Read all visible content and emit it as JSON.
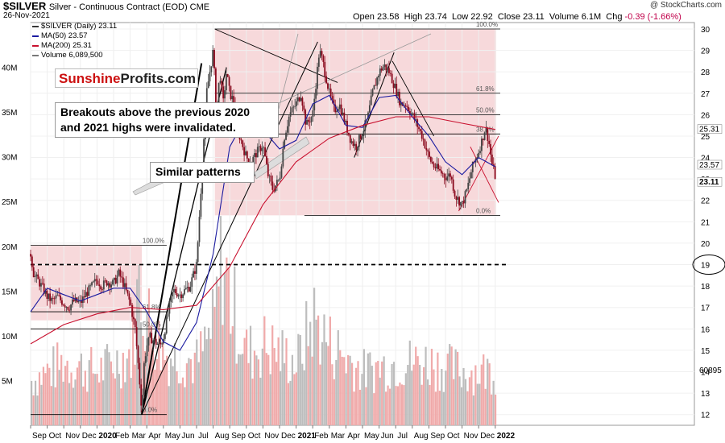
{
  "header": {
    "symbol": "$SILVER",
    "subtitle": "Silver - Continuous Contract (EOD)  CME",
    "date": "26-Nov-2021",
    "credit": "@ StockCharts.com",
    "open_label": "Open",
    "open": "23.58",
    "high_label": "High",
    "high": "23.74",
    "low_label": "Low",
    "low": "22.92",
    "close_label": "Close",
    "close": "23.11",
    "volume_label": "Volume",
    "volume": "6.1M",
    "chg_label": "Chg",
    "chg": "-0.39 (-1.66%)"
  },
  "legend": [
    {
      "text": "$SILVER (Daily) 23.11",
      "color": "#333333"
    },
    {
      "text": "MA(50) 23.57",
      "color": "#1a1aa0"
    },
    {
      "text": "MA(200) 25.31",
      "color": "#c8102e"
    },
    {
      "text": "Volume 6,089,500",
      "color": "#777777"
    }
  ],
  "logo": {
    "part1": "Sunshine",
    "part2": "Profits.com"
  },
  "annotations": {
    "breakout_line1": "Breakouts above the previous 2020",
    "breakout_line2": "and 2021 highs were invalidated.",
    "similar": "Similar patterns"
  },
  "colors": {
    "candle_up": "#444444",
    "candle_down": "#8b0a1e",
    "ma50": "#1a1aa0",
    "ma200": "#c8102e",
    "highlight_box": "#f4cccf",
    "volume_up": "#bdbdbd",
    "volume_down": "#f0aaaa"
  },
  "chart_data": {
    "type": "line",
    "title": "$SILVER Silver - Continuous Contract (EOD) CME",
    "x_tick_labels": [
      "Sep",
      "Oct",
      "Nov",
      "Dec",
      "2020",
      "Feb",
      "Mar",
      "Apr",
      "May",
      "Jun",
      "Jul",
      "Aug",
      "Sep",
      "Oct",
      "Nov",
      "Dec",
      "2021",
      "Feb",
      "Mar",
      "Apr",
      "May",
      "Jun",
      "Jul",
      "Aug",
      "Sep",
      "Oct",
      "Nov",
      "Dec",
      "2022"
    ],
    "price_axis_ticks": [
      12,
      13,
      14,
      15,
      16,
      17,
      18,
      19,
      20,
      21,
      22,
      23,
      24,
      25,
      26,
      27,
      28,
      29,
      30
    ],
    "price_ylim": [
      11.5,
      30.3
    ],
    "volume_axis_ticks": [
      "5M",
      "10M",
      "15M",
      "20M",
      "25M",
      "30M",
      "35M",
      "40M"
    ],
    "volume_ylim": [
      0,
      45
    ],
    "x_range_months": [
      0,
      40
    ],
    "right_axis_labels": [
      "25.31",
      "23.57",
      "23.11",
      "60895"
    ],
    "series": [
      {
        "name": "$SILVER (Daily) 23.11",
        "x": [
          0,
          0.2,
          0.5,
          0.8,
          1,
          1.3,
          1.6,
          2,
          2.3,
          2.6,
          3,
          3.3,
          3.6,
          4,
          4.3,
          4.6,
          5,
          5.3,
          5.6,
          6,
          6.3,
          6.5,
          6.7,
          6.85,
          7,
          7.2,
          7.5,
          7.8,
          8,
          8.3,
          8.6,
          9,
          9.3,
          9.6,
          10,
          10.3,
          10.6,
          11,
          11.2,
          11.4,
          11.6,
          11.8,
          12,
          12.3,
          12.6,
          13,
          13.3,
          13.6,
          14,
          14.3,
          14.6,
          15,
          15.3,
          15.6,
          16,
          16.3,
          16.6,
          17,
          17.2,
          17.4,
          17.6,
          18,
          18.3,
          18.6,
          19,
          19.3,
          19.6,
          20,
          20.3,
          20.6,
          21,
          21.3,
          21.6,
          22,
          22.3,
          22.6,
          23,
          23.3,
          23.6,
          24,
          24.3,
          24.6,
          25,
          25.3,
          25.6,
          26,
          26.3,
          26.6,
          27,
          27.2,
          27.4,
          27.6,
          27.8,
          28
        ],
        "close": [
          19.5,
          18.5,
          18.2,
          17.8,
          17.5,
          17.3,
          17.5,
          17.2,
          17.0,
          17.3,
          17.2,
          17.6,
          17.9,
          18.3,
          18.0,
          18.2,
          18.1,
          18.6,
          18.1,
          17.2,
          16.0,
          14.2,
          12.2,
          14.5,
          15.2,
          15.6,
          15.4,
          15.2,
          15.6,
          16.8,
          17.8,
          17.6,
          17.8,
          18.0,
          19.0,
          23.0,
          27.0,
          29.0,
          26.0,
          28.0,
          26.5,
          28.0,
          27.0,
          26.5,
          25.0,
          24.0,
          23.8,
          24.2,
          24.6,
          23.2,
          22.5,
          23.0,
          25.0,
          26.0,
          26.5,
          27.0,
          25.5,
          26.0,
          27.5,
          29.0,
          28.5,
          27.0,
          26.2,
          26.5,
          25.5,
          24.8,
          24.5,
          25.2,
          25.8,
          27.0,
          28.0,
          28.3,
          28.0,
          27.2,
          26.5,
          26.5,
          26.0,
          25.5,
          25.0,
          24.0,
          23.6,
          23.4,
          23.1,
          23.2,
          22.2,
          21.8,
          22.5,
          23.5,
          24.3,
          24.8,
          25.4,
          24.8,
          23.7,
          23.11
        ],
        "color": "#333333"
      },
      {
        "name": "MA(50) 23.57",
        "x": [
          0,
          1,
          2,
          3,
          4,
          5,
          6,
          7,
          8,
          9,
          10,
          11,
          12,
          13,
          14,
          15,
          16,
          17,
          18,
          19,
          20,
          21,
          22,
          23,
          24,
          25,
          26,
          27,
          28
        ],
        "close": [
          16.8,
          17.9,
          17.6,
          17.3,
          17.6,
          17.9,
          17.9,
          16.8,
          15.4,
          15.0,
          16.3,
          19.5,
          24.5,
          25.9,
          25.3,
          24.4,
          24.8,
          26.5,
          26.9,
          25.5,
          25.4,
          26.8,
          26.9,
          25.9,
          25.0,
          23.8,
          23.2,
          24.0,
          23.57
        ],
        "color": "#1a1aa0"
      },
      {
        "name": "MA(200) 25.31",
        "x": [
          0,
          2,
          4,
          6,
          8,
          10,
          12,
          14,
          16,
          18,
          20,
          22,
          24,
          26,
          28
        ],
        "close": [
          15.3,
          16.2,
          16.7,
          17.0,
          16.9,
          17.1,
          18.9,
          21.8,
          23.8,
          24.9,
          25.5,
          25.9,
          25.9,
          25.6,
          25.31
        ],
        "color": "#c8102e"
      },
      {
        "name": "Volume 6,089,500",
        "x": [
          0,
          2,
          4,
          6,
          6.5,
          7,
          8,
          10,
          11,
          11.5,
          12,
          13,
          14,
          16,
          17,
          18,
          20,
          22,
          24,
          26,
          28
        ],
        "values": [
          5,
          7,
          6,
          8,
          16,
          12,
          8,
          7,
          11,
          19,
          14,
          8,
          9,
          7,
          12,
          9,
          6,
          7,
          7,
          6,
          6.1
        ],
        "color": "#777777"
      }
    ],
    "levels": [
      {
        "label": "100.0%",
        "value": 30.0
      },
      {
        "label": "61.8%",
        "value": 27.0
      },
      {
        "label": "50.0%",
        "value": 26.0
      },
      {
        "label": "38.2%",
        "value": 25.1
      },
      {
        "label": "0.0%",
        "value": 21.3
      },
      {
        "label": "100.0%",
        "value": 19.9
      },
      {
        "label": "61.8%",
        "value": 16.8
      },
      {
        "label": "50.0%",
        "value": 16.0
      },
      {
        "label": "0.0%",
        "value": 12.0
      },
      {
        "label": "",
        "value": 19.0
      }
    ]
  }
}
